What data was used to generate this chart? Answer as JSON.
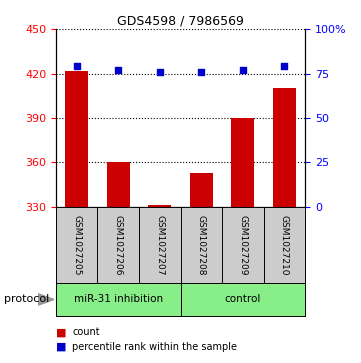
{
  "title": "GDS4598 / 7986569",
  "samples": [
    "GSM1027205",
    "GSM1027206",
    "GSM1027207",
    "GSM1027208",
    "GSM1027209",
    "GSM1027210"
  ],
  "counts": [
    422,
    360,
    331,
    353,
    390,
    410
  ],
  "percentiles": [
    79,
    77,
    76,
    76,
    77,
    79
  ],
  "ylim_left": [
    330,
    450
  ],
  "ylim_right": [
    0,
    100
  ],
  "yticks_left": [
    330,
    360,
    390,
    420,
    450
  ],
  "yticks_right": [
    0,
    25,
    50,
    75,
    100
  ],
  "ytick_labels_right": [
    "0",
    "25",
    "50",
    "75",
    "100%"
  ],
  "bar_color": "#cc0000",
  "dot_color": "#0000cc",
  "group_labels": [
    "miR-31 inhibition",
    "control"
  ],
  "group_starts": [
    0,
    3
  ],
  "group_ends": [
    3,
    6
  ],
  "group_color": "#88ee88",
  "protocol_label": "protocol",
  "legend_items": [
    {
      "color": "#cc0000",
      "label": "count"
    },
    {
      "color": "#0000cc",
      "label": "percentile rank within the sample"
    }
  ],
  "bar_baseline": 330,
  "sample_box_color": "#cccccc",
  "title_fontsize": 9
}
